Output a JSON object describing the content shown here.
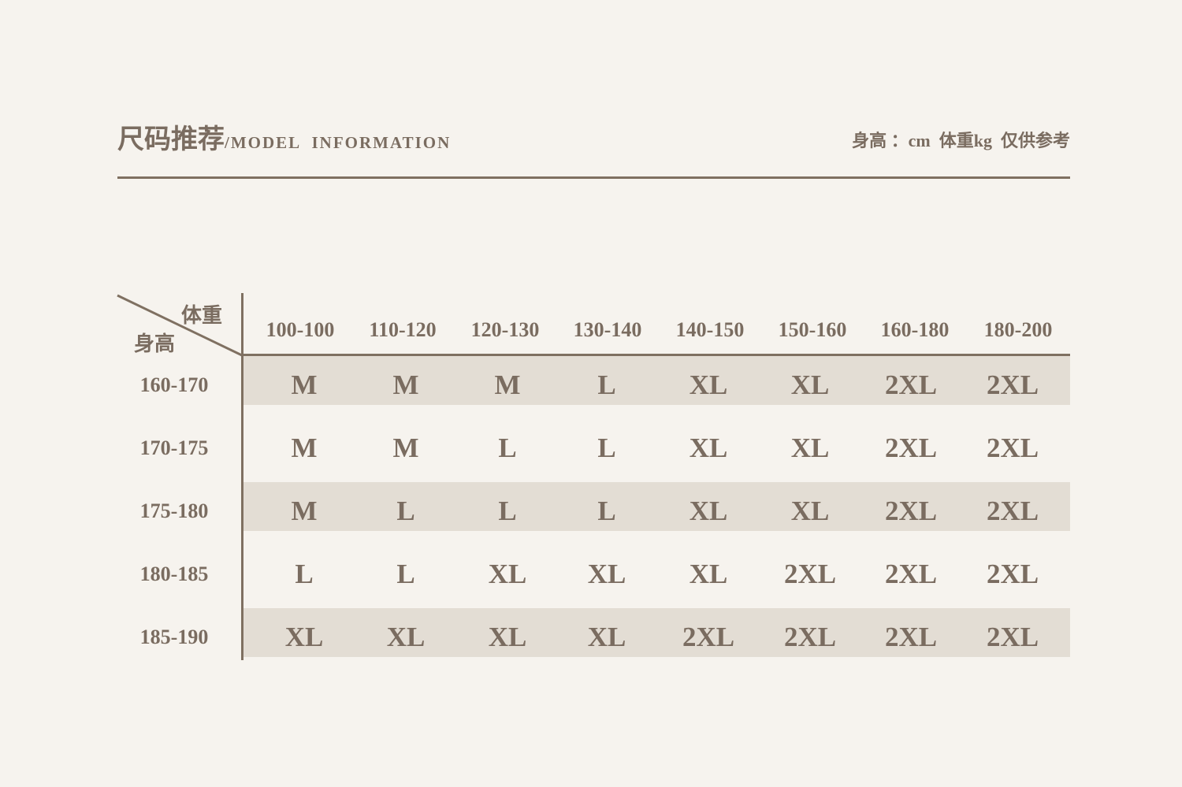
{
  "header": {
    "title_cn": "尺码推荐",
    "title_en": "/MODEL  INFORMATION",
    "note": "身高 ：cm  体重kg  仅供参考"
  },
  "colors": {
    "background": "#f6f3ee",
    "text": "#7a6c60",
    "stripe": "#e3ddd4",
    "line": "#7f7061"
  },
  "table": {
    "corner_top": "体重",
    "corner_bottom": "身高",
    "columns": [
      "100-100",
      "110-120",
      "120-130",
      "130-140",
      "140-150",
      "150-160",
      "160-180",
      "180-200"
    ],
    "rows": [
      {
        "label": "160-170",
        "sizes": [
          "M",
          "M",
          "M",
          "L",
          "XL",
          "XL",
          "2XL",
          "2XL"
        ],
        "shaded": true
      },
      {
        "label": "170-175",
        "sizes": [
          "M",
          "M",
          "L",
          "L",
          "XL",
          "XL",
          "2XL",
          "2XL"
        ],
        "shaded": false
      },
      {
        "label": "175-180",
        "sizes": [
          "M",
          "L",
          "L",
          "L",
          "XL",
          "XL",
          "2XL",
          "2XL"
        ],
        "shaded": true
      },
      {
        "label": "180-185",
        "sizes": [
          "L",
          "L",
          "XL",
          "XL",
          "XL",
          "2XL",
          "2XL",
          "2XL"
        ],
        "shaded": false
      },
      {
        "label": "185-190",
        "sizes": [
          "XL",
          "XL",
          "XL",
          "XL",
          "2XL",
          "2XL",
          "2XL",
          "2XL"
        ],
        "shaded": true
      }
    ]
  }
}
